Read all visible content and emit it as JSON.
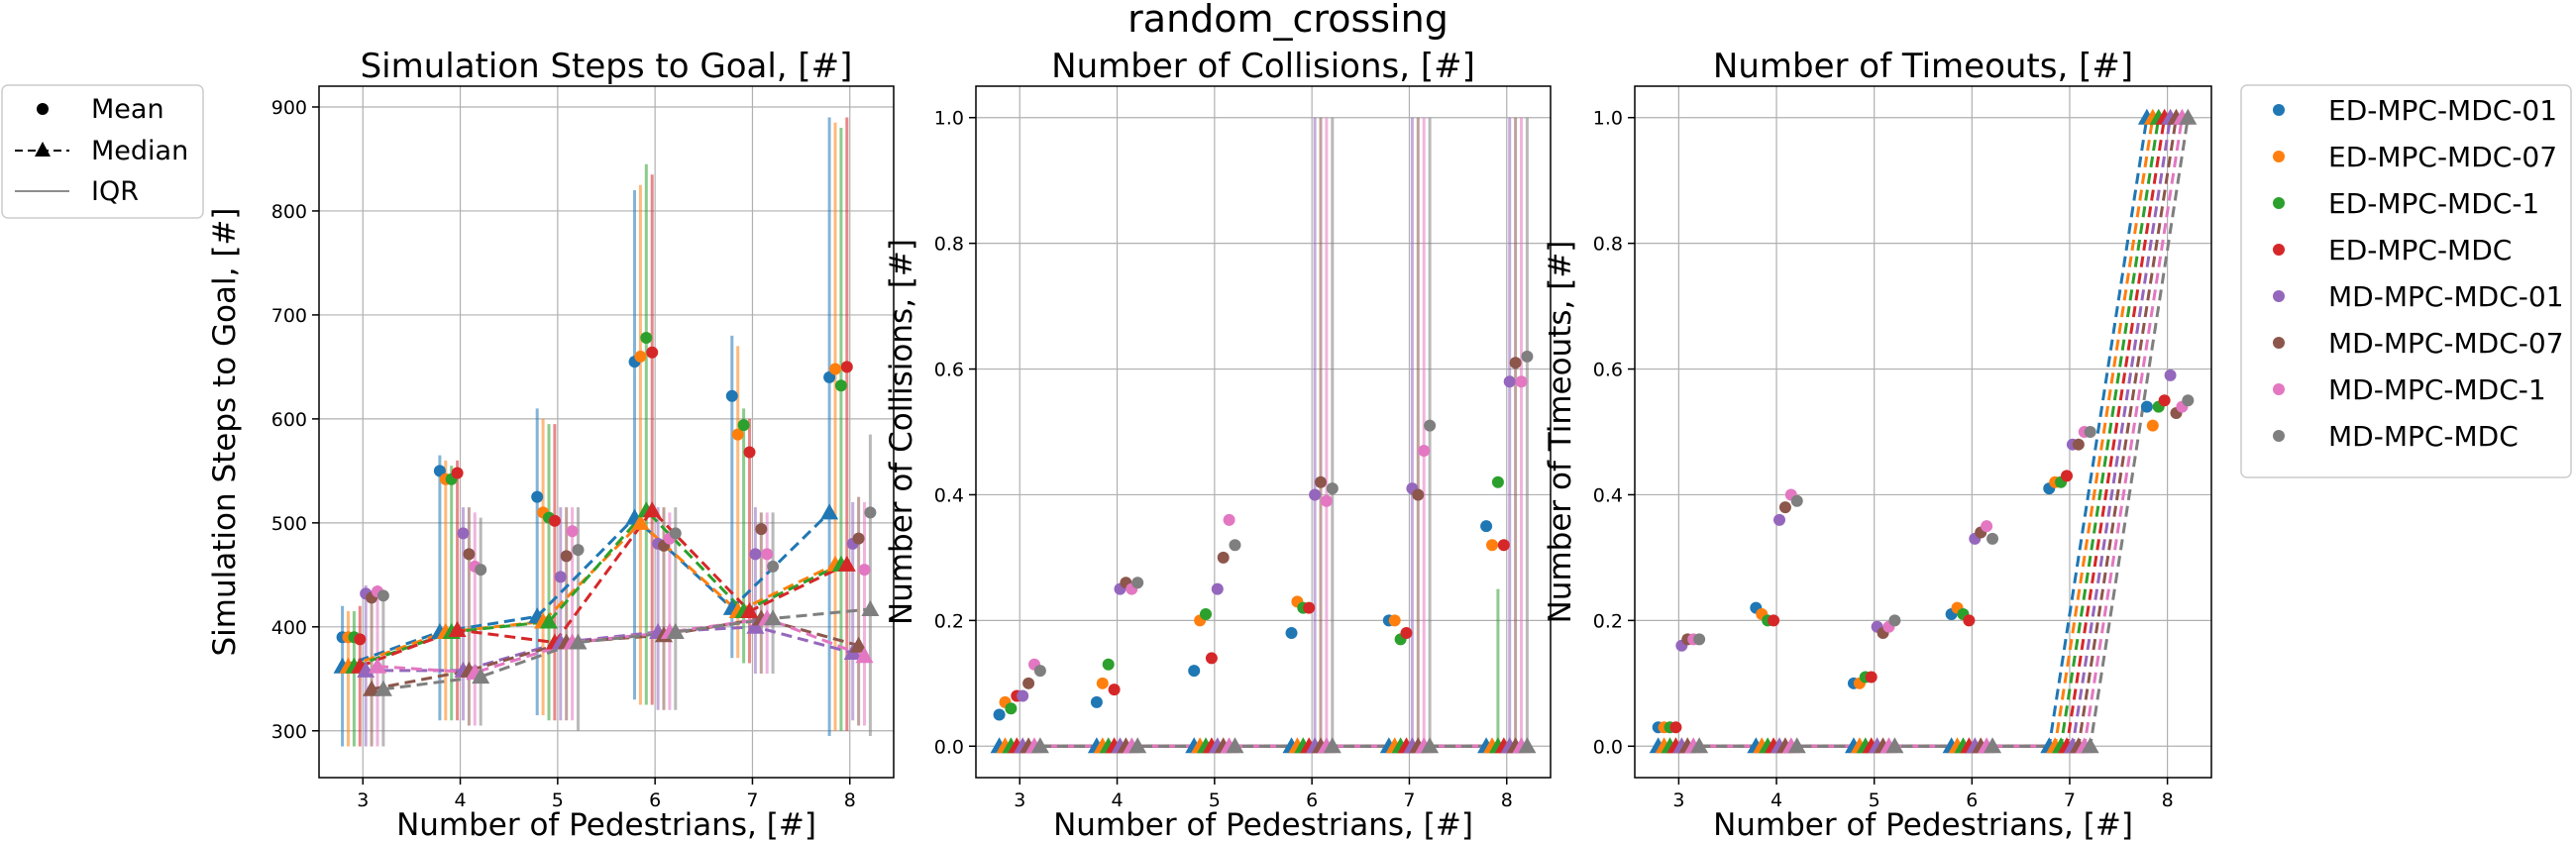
{
  "suptitle": "random_crossing",
  "colors": [
    "#1f77b4",
    "#ff7f0e",
    "#2ca02c",
    "#d62728",
    "#9467bd",
    "#8c564b",
    "#e377c2",
    "#7f7f7f"
  ],
  "stats_legend": {
    "mean": "Mean",
    "median": "Median",
    "iqr": "IQR"
  },
  "chart_data": [
    {
      "type": "scatter",
      "title": "Simulation Steps to Goal, [#]",
      "xlabel": "Number of Pedestrians, [#]",
      "ylabel": "Simulation Steps to Goal, [#]",
      "xlim": [
        2.55,
        8.45
      ],
      "ylim": [
        255,
        920
      ],
      "xticks": [
        3,
        4,
        5,
        6,
        7,
        8
      ],
      "yticks": [
        300,
        400,
        500,
        600,
        700,
        800,
        900
      ],
      "x": [
        3,
        4,
        5,
        6,
        7,
        8
      ],
      "series": [
        {
          "name": "ED-MPC-MDC-01",
          "mean": [
            390,
            550,
            525,
            655,
            622,
            640
          ],
          "median": [
            362,
            395,
            410,
            505,
            418,
            510
          ],
          "iqr": [
            [
              285,
              420
            ],
            [
              310,
              565
            ],
            [
              315,
              610
            ],
            [
              330,
              820
            ],
            [
              370,
              680
            ],
            [
              295,
              890
            ]
          ]
        },
        {
          "name": "ED-MPC-MDC-07",
          "mean": [
            390,
            542,
            510,
            660,
            585,
            648
          ],
          "median": [
            362,
            395,
            405,
            500,
            415,
            460
          ],
          "iqr": [
            [
              285,
              415
            ],
            [
              310,
              560
            ],
            [
              315,
              600
            ],
            [
              325,
              825
            ],
            [
              370,
              670
            ],
            [
              300,
              885
            ]
          ]
        },
        {
          "name": "ED-MPC-MDC-1",
          "mean": [
            390,
            542,
            505,
            678,
            594,
            632
          ],
          "median": [
            362,
            395,
            405,
            512,
            415,
            460
          ],
          "iqr": [
            [
              285,
              415
            ],
            [
              310,
              555
            ],
            [
              310,
              595
            ],
            [
              325,
              845
            ],
            [
              365,
              610
            ],
            [
              300,
              880
            ]
          ]
        },
        {
          "name": "ED-MPC-MDC",
          "mean": [
            388,
            548,
            502,
            664,
            568,
            650
          ],
          "median": [
            362,
            397,
            385,
            512,
            415,
            460
          ],
          "iqr": [
            [
              285,
              420
            ],
            [
              310,
              560
            ],
            [
              310,
              595
            ],
            [
              325,
              835
            ],
            [
              365,
              600
            ],
            [
              300,
              890
            ]
          ]
        },
        {
          "name": "MD-MPC-MDC-01",
          "mean": [
            432,
            490,
            448,
            480,
            470,
            480
          ],
          "median": [
            358,
            358,
            385,
            395,
            400,
            375
          ],
          "iqr": [
            [
              285,
              440
            ],
            [
              310,
              515
            ],
            [
              310,
              515
            ],
            [
              320,
              515
            ],
            [
              355,
              515
            ],
            [
              310,
              520
            ]
          ]
        },
        {
          "name": "MD-MPC-MDC-07",
          "mean": [
            428,
            470,
            468,
            478,
            494,
            485
          ],
          "median": [
            340,
            358,
            385,
            392,
            408,
            382
          ],
          "iqr": [
            [
              285,
              435
            ],
            [
              305,
              515
            ],
            [
              310,
              515
            ],
            [
              320,
              515
            ],
            [
              355,
              510
            ],
            [
              305,
              525
            ]
          ]
        },
        {
          "name": "MD-MPC-MDC-1",
          "mean": [
            434,
            458,
            492,
            485,
            470,
            455
          ],
          "median": [
            362,
            356,
            385,
            395,
            408,
            372
          ],
          "iqr": [
            [
              285,
              440
            ],
            [
              305,
              510
            ],
            [
              310,
              515
            ],
            [
              320,
              510
            ],
            [
              355,
              510
            ],
            [
              305,
              520
            ]
          ]
        },
        {
          "name": "MD-MPC-MDC",
          "mean": [
            430,
            455,
            474,
            490,
            458,
            510
          ],
          "median": [
            340,
            352,
            385,
            395,
            408,
            417
          ],
          "iqr": [
            [
              285,
              435
            ],
            [
              305,
              505
            ],
            [
              300,
              515
            ],
            [
              320,
              515
            ],
            [
              355,
              510
            ],
            [
              295,
              585
            ]
          ]
        }
      ]
    },
    {
      "type": "scatter",
      "title": "Number of Collisions, [#]",
      "xlabel": "Number of Pedestrians, [#]",
      "ylabel": "Number of Collisions, [#]",
      "xlim": [
        2.55,
        8.45
      ],
      "ylim": [
        -0.05,
        1.05
      ],
      "xticks": [
        3,
        4,
        5,
        6,
        7,
        8
      ],
      "yticks": [
        0.0,
        0.2,
        0.4,
        0.6,
        0.8,
        1.0
      ],
      "x": [
        3,
        4,
        5,
        6,
        7,
        8
      ],
      "series": [
        {
          "name": "ED-MPC-MDC-01",
          "mean": [
            0.05,
            0.07,
            0.12,
            0.18,
            0.2,
            0.35
          ],
          "median": [
            0,
            0,
            0,
            0,
            0,
            0
          ],
          "iqr": [
            null,
            null,
            null,
            null,
            null,
            null
          ]
        },
        {
          "name": "ED-MPC-MDC-07",
          "mean": [
            0.07,
            0.1,
            0.2,
            0.23,
            0.2,
            0.32
          ],
          "median": [
            0,
            0,
            0,
            0,
            0,
            0
          ],
          "iqr": [
            null,
            null,
            null,
            null,
            null,
            null
          ]
        },
        {
          "name": "ED-MPC-MDC-1",
          "mean": [
            0.06,
            0.13,
            0.21,
            0.22,
            0.17,
            0.42
          ],
          "median": [
            0,
            0,
            0,
            0,
            0,
            0
          ],
          "iqr": [
            null,
            null,
            null,
            null,
            null,
            [
              0,
              0.25
            ]
          ]
        },
        {
          "name": "ED-MPC-MDC",
          "mean": [
            0.08,
            0.09,
            0.14,
            0.22,
            0.18,
            0.32
          ],
          "median": [
            0,
            0,
            0,
            0,
            0,
            0
          ],
          "iqr": [
            null,
            null,
            null,
            null,
            null,
            null
          ]
        },
        {
          "name": "MD-MPC-MDC-01",
          "mean": [
            0.08,
            0.25,
            0.25,
            0.4,
            0.41,
            0.58
          ],
          "median": [
            0,
            0,
            0,
            0,
            0,
            0
          ],
          "iqr": [
            null,
            null,
            null,
            [
              0,
              1
            ],
            [
              0,
              1
            ],
            [
              0,
              1
            ]
          ]
        },
        {
          "name": "MD-MPC-MDC-07",
          "mean": [
            0.1,
            0.26,
            0.3,
            0.42,
            0.4,
            0.61
          ],
          "median": [
            0,
            0,
            0,
            0,
            0,
            0
          ],
          "iqr": [
            null,
            null,
            null,
            [
              0,
              1
            ],
            [
              0,
              1
            ],
            [
              0,
              1
            ]
          ]
        },
        {
          "name": "MD-MPC-MDC-1",
          "mean": [
            0.13,
            0.25,
            0.36,
            0.39,
            0.47,
            0.58
          ],
          "median": [
            0,
            0,
            0,
            0,
            0,
            0
          ],
          "iqr": [
            null,
            null,
            null,
            [
              0,
              1
            ],
            [
              0,
              1
            ],
            [
              0,
              1
            ]
          ]
        },
        {
          "name": "MD-MPC-MDC",
          "mean": [
            0.12,
            0.26,
            0.32,
            0.41,
            0.51,
            0.62
          ],
          "median": [
            0,
            0,
            0,
            0,
            0,
            0
          ],
          "iqr": [
            null,
            null,
            null,
            [
              0,
              1
            ],
            [
              0,
              1
            ],
            [
              0,
              1
            ]
          ]
        }
      ]
    },
    {
      "type": "scatter",
      "title": "Number of Timeouts, [#]",
      "xlabel": "Number of Pedestrians, [#]",
      "ylabel": "Number of Timeouts, [#]",
      "xlim": [
        2.55,
        8.45
      ],
      "ylim": [
        -0.05,
        1.05
      ],
      "xticks": [
        3,
        4,
        5,
        6,
        7,
        8
      ],
      "yticks": [
        0.0,
        0.2,
        0.4,
        0.6,
        0.8,
        1.0
      ],
      "x": [
        3,
        4,
        5,
        6,
        7,
        8
      ],
      "series": [
        {
          "name": "ED-MPC-MDC-01",
          "mean": [
            0.03,
            0.22,
            0.1,
            0.21,
            0.41,
            0.54
          ],
          "median": [
            0,
            0,
            0,
            0,
            0,
            1
          ],
          "iqr": [
            null,
            null,
            null,
            null,
            null,
            null
          ]
        },
        {
          "name": "ED-MPC-MDC-07",
          "mean": [
            0.03,
            0.21,
            0.1,
            0.22,
            0.42,
            0.51
          ],
          "median": [
            0,
            0,
            0,
            0,
            0,
            1
          ],
          "iqr": [
            null,
            null,
            null,
            null,
            null,
            null
          ]
        },
        {
          "name": "ED-MPC-MDC-1",
          "mean": [
            0.03,
            0.2,
            0.11,
            0.21,
            0.42,
            0.54
          ],
          "median": [
            0,
            0,
            0,
            0,
            0,
            1
          ],
          "iqr": [
            null,
            null,
            null,
            null,
            null,
            null
          ]
        },
        {
          "name": "ED-MPC-MDC",
          "mean": [
            0.03,
            0.2,
            0.11,
            0.2,
            0.43,
            0.55
          ],
          "median": [
            0,
            0,
            0,
            0,
            0,
            1
          ],
          "iqr": [
            null,
            null,
            null,
            null,
            null,
            null
          ]
        },
        {
          "name": "MD-MPC-MDC-01",
          "mean": [
            0.16,
            0.36,
            0.19,
            0.33,
            0.48,
            0.59
          ],
          "median": [
            0,
            0,
            0,
            0,
            0,
            1
          ],
          "iqr": [
            null,
            null,
            null,
            null,
            null,
            null
          ]
        },
        {
          "name": "MD-MPC-MDC-07",
          "mean": [
            0.17,
            0.38,
            0.18,
            0.34,
            0.48,
            0.53
          ],
          "median": [
            0,
            0,
            0,
            0,
            0,
            1
          ],
          "iqr": [
            null,
            null,
            null,
            null,
            null,
            null
          ]
        },
        {
          "name": "MD-MPC-MDC-1",
          "mean": [
            0.17,
            0.4,
            0.19,
            0.35,
            0.5,
            0.54
          ],
          "median": [
            0,
            0,
            0,
            0,
            0,
            1
          ],
          "iqr": [
            null,
            null,
            null,
            null,
            null,
            null
          ]
        },
        {
          "name": "MD-MPC-MDC",
          "mean": [
            0.17,
            0.39,
            0.2,
            0.33,
            0.5,
            0.55
          ],
          "median": [
            0,
            0,
            0,
            0,
            0,
            1
          ],
          "iqr": [
            null,
            null,
            null,
            null,
            null,
            null
          ]
        }
      ]
    }
  ]
}
